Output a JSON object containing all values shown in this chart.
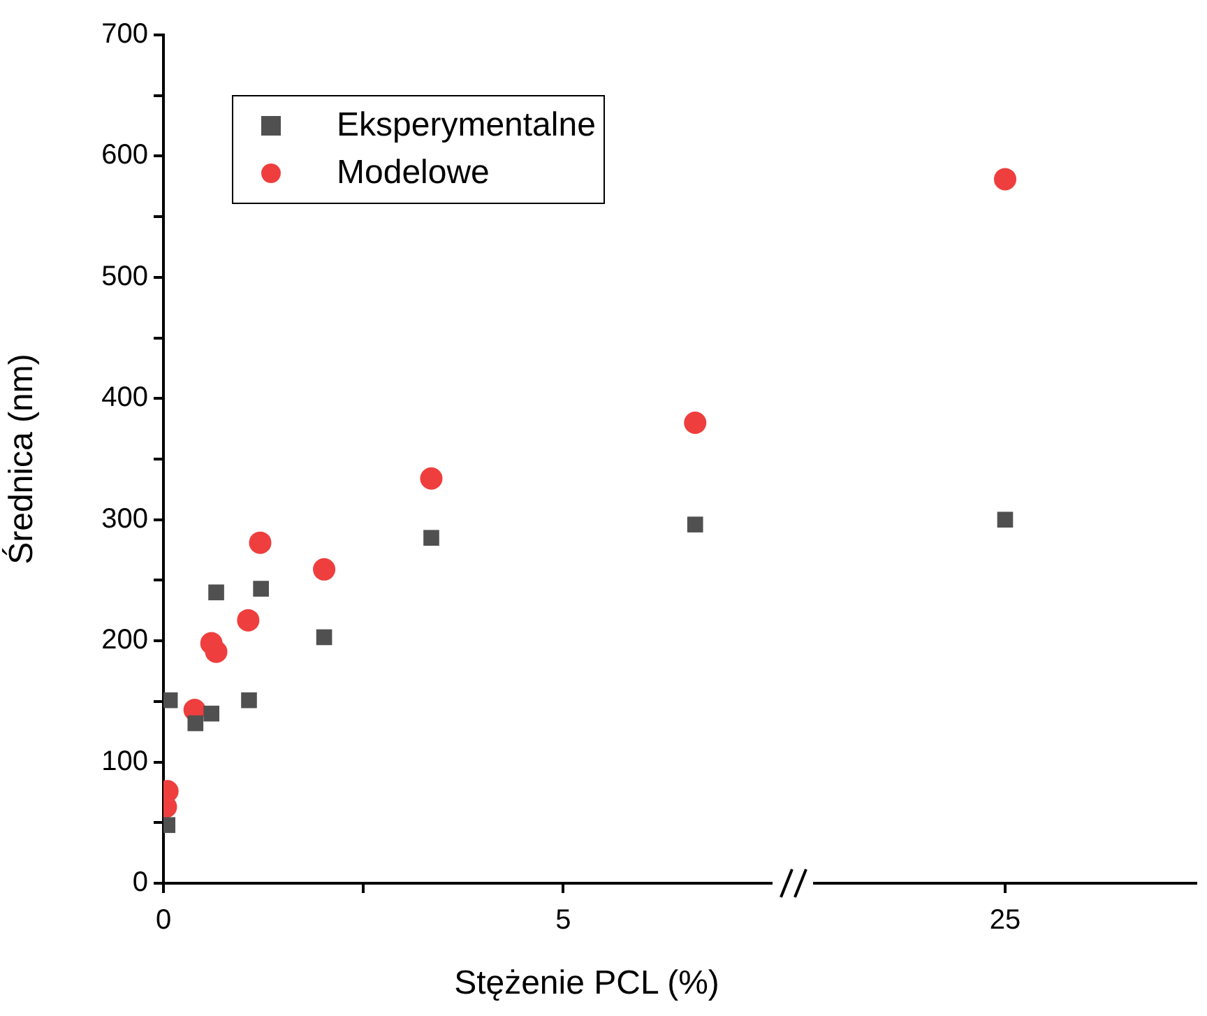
{
  "chart_data": [
    {
      "type": "scatter",
      "xlabel": "Stężenie PCL (%)",
      "ylabel": "Średnica (nm)",
      "xlim": [
        0,
        7.6
      ],
      "xticks": [
        0,
        {
          "value": 2.5,
          "label": null
        },
        5
      ],
      "ylim": [
        0,
        700
      ],
      "yticks": [
        0,
        {
          "value": 50,
          "label": null
        },
        100,
        {
          "value": 150,
          "label": null
        },
        200,
        {
          "value": 250,
          "label": null
        },
        300,
        {
          "value": 350,
          "label": null
        },
        400,
        {
          "value": 450,
          "label": null
        },
        500,
        {
          "value": 550,
          "label": null
        },
        600,
        {
          "value": 650,
          "label": null
        },
        700
      ],
      "grid": false,
      "legend": "top left",
      "series": [
        {
          "name": "Eksperymentalne",
          "color": "#505050",
          "marker": "square",
          "x": [
            0.05,
            0.08,
            0.4,
            0.6,
            0.66,
            1.07,
            1.22,
            2.01,
            3.35,
            6.65
          ],
          "values": [
            48,
            151,
            132,
            140,
            240,
            151,
            243,
            203,
            285,
            296
          ]
        },
        {
          "name": "Modelowe",
          "color": "#ef3e3e",
          "marker": "circle",
          "x": [
            0.05,
            0.03,
            0.39,
            0.6,
            0.66,
            1.06,
            1.21,
            2.01,
            3.35,
            6.65
          ],
          "values": [
            76,
            63,
            143,
            198,
            191,
            217,
            281,
            259,
            334,
            380
          ]
        }
      ]
    },
    {
      "type": "scatter",
      "categories": [
        "25"
      ],
      "ylim": [
        0,
        700
      ],
      "tick_labels": "x",
      "grid": false,
      "series": [
        {
          "color": "#505050",
          "marker": "square",
          "x": [
            "25"
          ],
          "values": [
            300
          ]
        },
        {
          "color": "#ef3e3e",
          "marker": "circle",
          "x": [
            "25"
          ],
          "values": [
            581
          ]
        }
      ]
    }
  ]
}
